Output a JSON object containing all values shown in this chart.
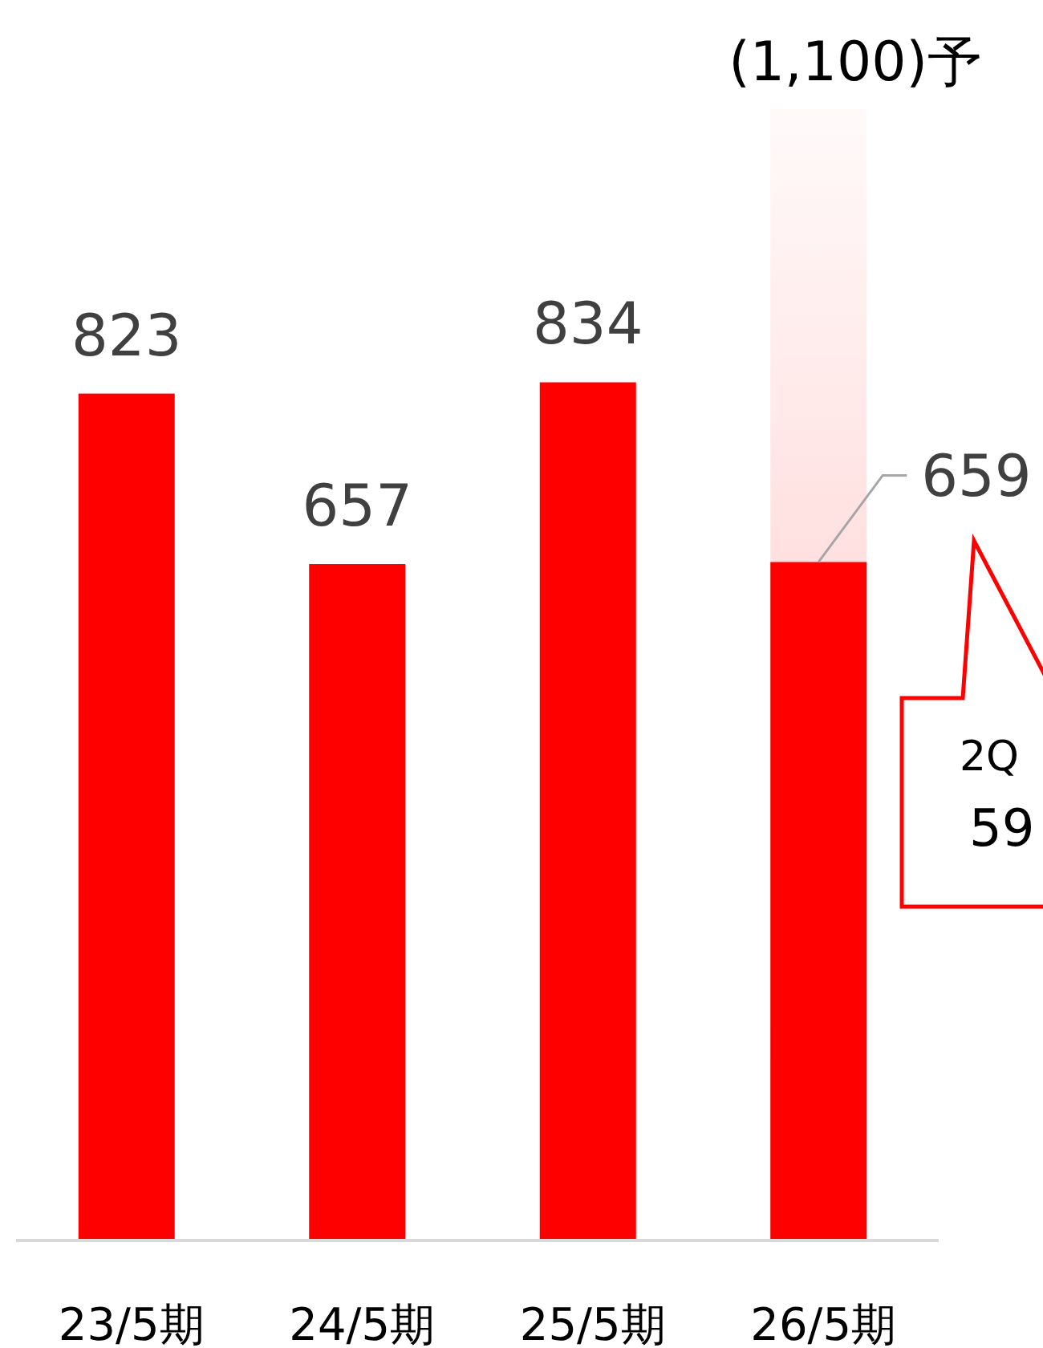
{
  "chart_data": {
    "type": "bar",
    "categories": [
      "23/5期",
      "24/5期",
      "25/5期",
      "26/5期"
    ],
    "series": [
      {
        "color": "#ffcccc",
        "values": [
          null,
          null,
          null,
          1100
        ],
        "value_labels": [
          null,
          null,
          null,
          "(1,100)予"
        ]
      },
      {
        "color": "#ff0000",
        "values": [
          823,
          657,
          834,
          659
        ],
        "value_labels": [
          "823",
          "657",
          "834",
          "659"
        ]
      }
    ],
    "annotations": [
      "2Q",
      "59"
    ]
  }
}
